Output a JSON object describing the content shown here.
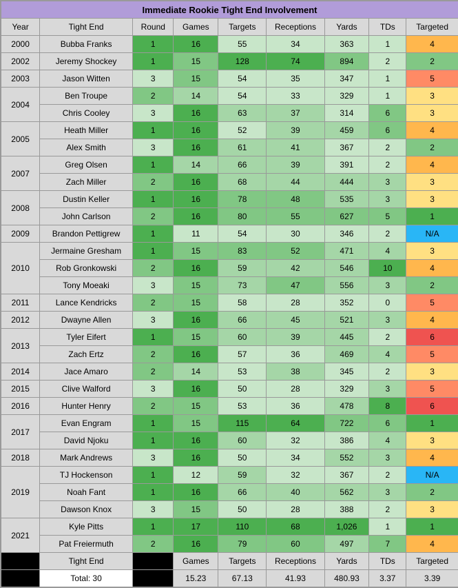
{
  "title": "Immediate Rookie Tight End Involvement",
  "headers": [
    "Year",
    "Tight End",
    "Round",
    "Games",
    "Targets",
    "Receptions",
    "Yards",
    "TDs",
    "Targeted"
  ],
  "footer": {
    "te_label": "Tight End",
    "stat_labels": [
      "Games",
      "Targets",
      "Receptions",
      "Yards",
      "TDs",
      "Targeted"
    ],
    "total_label": "Total: 30",
    "averages": [
      "15.23",
      "67.13",
      "41.93",
      "480.93",
      "3.37",
      "3.39"
    ]
  },
  "colors": {
    "green_dark": "#4caf50",
    "green_mid": "#81c784",
    "green_lite": "#a5d6a7",
    "green_vlite": "#c8e6c9",
    "yellow": "#ffe082",
    "orange": "#ffb74d",
    "orange_red": "#ff8a65",
    "red": "#ef5350",
    "blue": "#29b6f6"
  },
  "rows": [
    {
      "year": "2000",
      "span": 1,
      "te": "Bubba Franks",
      "round": "1",
      "round_c": "green_dark",
      "games": "16",
      "games_c": "green_dark",
      "targets": "55",
      "targets_c": "green_vlite",
      "receptions": "34",
      "receptions_c": "green_vlite",
      "yards": "363",
      "yards_c": "green_vlite",
      "tds": "1",
      "tds_c": "green_vlite",
      "targeted": "4",
      "targeted_c": "orange"
    },
    {
      "year": "2002",
      "span": 1,
      "te": "Jeremy Shockey",
      "round": "1",
      "round_c": "green_dark",
      "games": "15",
      "games_c": "green_mid",
      "targets": "128",
      "targets_c": "green_dark",
      "receptions": "74",
      "receptions_c": "green_dark",
      "yards": "894",
      "yards_c": "green_mid",
      "tds": "2",
      "tds_c": "green_vlite",
      "targeted": "2",
      "targeted_c": "green_mid"
    },
    {
      "year": "2003",
      "span": 1,
      "te": "Jason Witten",
      "round": "3",
      "round_c": "green_vlite",
      "games": "15",
      "games_c": "green_mid",
      "targets": "54",
      "targets_c": "green_vlite",
      "receptions": "35",
      "receptions_c": "green_vlite",
      "yards": "347",
      "yards_c": "green_vlite",
      "tds": "1",
      "tds_c": "green_vlite",
      "targeted": "5",
      "targeted_c": "orange_red"
    },
    {
      "year": "2004",
      "span": 2,
      "te": "Ben Troupe",
      "round": "2",
      "round_c": "green_mid",
      "games": "14",
      "games_c": "green_lite",
      "targets": "54",
      "targets_c": "green_vlite",
      "receptions": "33",
      "receptions_c": "green_vlite",
      "yards": "329",
      "yards_c": "green_vlite",
      "tds": "1",
      "tds_c": "green_vlite",
      "targeted": "3",
      "targeted_c": "yellow"
    },
    {
      "te": "Chris Cooley",
      "round": "3",
      "round_c": "green_vlite",
      "games": "16",
      "games_c": "green_dark",
      "targets": "63",
      "targets_c": "green_lite",
      "receptions": "37",
      "receptions_c": "green_lite",
      "yards": "314",
      "yards_c": "green_vlite",
      "tds": "6",
      "tds_c": "green_mid",
      "targeted": "3",
      "targeted_c": "yellow"
    },
    {
      "year": "2005",
      "span": 2,
      "te": "Heath Miller",
      "round": "1",
      "round_c": "green_dark",
      "games": "16",
      "games_c": "green_dark",
      "targets": "52",
      "targets_c": "green_vlite",
      "receptions": "39",
      "receptions_c": "green_lite",
      "yards": "459",
      "yards_c": "green_lite",
      "tds": "6",
      "tds_c": "green_mid",
      "targeted": "4",
      "targeted_c": "orange"
    },
    {
      "te": "Alex Smith",
      "round": "3",
      "round_c": "green_vlite",
      "games": "16",
      "games_c": "green_dark",
      "targets": "61",
      "targets_c": "green_lite",
      "receptions": "41",
      "receptions_c": "green_lite",
      "yards": "367",
      "yards_c": "green_vlite",
      "tds": "2",
      "tds_c": "green_vlite",
      "targeted": "2",
      "targeted_c": "green_mid"
    },
    {
      "year": "2007",
      "span": 2,
      "te": "Greg Olsen",
      "round": "1",
      "round_c": "green_dark",
      "games": "14",
      "games_c": "green_lite",
      "targets": "66",
      "targets_c": "green_lite",
      "receptions": "39",
      "receptions_c": "green_lite",
      "yards": "391",
      "yards_c": "green_vlite",
      "tds": "2",
      "tds_c": "green_vlite",
      "targeted": "4",
      "targeted_c": "orange"
    },
    {
      "te": "Zach Miller",
      "round": "2",
      "round_c": "green_mid",
      "games": "16",
      "games_c": "green_dark",
      "targets": "68",
      "targets_c": "green_lite",
      "receptions": "44",
      "receptions_c": "green_lite",
      "yards": "444",
      "yards_c": "green_lite",
      "tds": "3",
      "tds_c": "green_lite",
      "targeted": "3",
      "targeted_c": "yellow"
    },
    {
      "year": "2008",
      "span": 2,
      "te": "Dustin Keller",
      "round": "1",
      "round_c": "green_dark",
      "games": "16",
      "games_c": "green_dark",
      "targets": "78",
      "targets_c": "green_mid",
      "receptions": "48",
      "receptions_c": "green_mid",
      "yards": "535",
      "yards_c": "green_lite",
      "tds": "3",
      "tds_c": "green_lite",
      "targeted": "3",
      "targeted_c": "yellow"
    },
    {
      "te": "John Carlson",
      "round": "2",
      "round_c": "green_mid",
      "games": "16",
      "games_c": "green_dark",
      "targets": "80",
      "targets_c": "green_mid",
      "receptions": "55",
      "receptions_c": "green_mid",
      "yards": "627",
      "yards_c": "green_mid",
      "tds": "5",
      "tds_c": "green_mid",
      "targeted": "1",
      "targeted_c": "green_dark"
    },
    {
      "year": "2009",
      "span": 1,
      "te": "Brandon Pettigrew",
      "round": "1",
      "round_c": "green_dark",
      "games": "11",
      "games_c": "green_vlite",
      "targets": "54",
      "targets_c": "green_vlite",
      "receptions": "30",
      "receptions_c": "green_vlite",
      "yards": "346",
      "yards_c": "green_vlite",
      "tds": "2",
      "tds_c": "green_vlite",
      "targeted": "N/A",
      "targeted_c": "blue"
    },
    {
      "year": "2010",
      "span": 3,
      "te": "Jermaine Gresham",
      "round": "1",
      "round_c": "green_dark",
      "games": "15",
      "games_c": "green_mid",
      "targets": "83",
      "targets_c": "green_mid",
      "receptions": "52",
      "receptions_c": "green_mid",
      "yards": "471",
      "yards_c": "green_lite",
      "tds": "4",
      "tds_c": "green_lite",
      "targeted": "3",
      "targeted_c": "yellow"
    },
    {
      "te": "Rob Gronkowski",
      "round": "2",
      "round_c": "green_mid",
      "games": "16",
      "games_c": "green_dark",
      "targets": "59",
      "targets_c": "green_lite",
      "receptions": "42",
      "receptions_c": "green_lite",
      "yards": "546",
      "yards_c": "green_lite",
      "tds": "10",
      "tds_c": "green_dark",
      "targeted": "4",
      "targeted_c": "orange"
    },
    {
      "te": "Tony Moeaki",
      "round": "3",
      "round_c": "green_vlite",
      "games": "15",
      "games_c": "green_mid",
      "targets": "73",
      "targets_c": "green_lite",
      "receptions": "47",
      "receptions_c": "green_mid",
      "yards": "556",
      "yards_c": "green_lite",
      "tds": "3",
      "tds_c": "green_lite",
      "targeted": "2",
      "targeted_c": "green_mid"
    },
    {
      "year": "2011",
      "span": 1,
      "te": "Lance Kendricks",
      "round": "2",
      "round_c": "green_mid",
      "games": "15",
      "games_c": "green_mid",
      "targets": "58",
      "targets_c": "green_vlite",
      "receptions": "28",
      "receptions_c": "green_vlite",
      "yards": "352",
      "yards_c": "green_vlite",
      "tds": "0",
      "tds_c": "green_vlite",
      "targeted": "5",
      "targeted_c": "orange_red"
    },
    {
      "year": "2012",
      "span": 1,
      "te": "Dwayne Allen",
      "round": "3",
      "round_c": "green_vlite",
      "games": "16",
      "games_c": "green_dark",
      "targets": "66",
      "targets_c": "green_lite",
      "receptions": "45",
      "receptions_c": "green_lite",
      "yards": "521",
      "yards_c": "green_lite",
      "tds": "3",
      "tds_c": "green_lite",
      "targeted": "4",
      "targeted_c": "orange"
    },
    {
      "year": "2013",
      "span": 2,
      "te": "Tyler Eifert",
      "round": "1",
      "round_c": "green_dark",
      "games": "15",
      "games_c": "green_mid",
      "targets": "60",
      "targets_c": "green_lite",
      "receptions": "39",
      "receptions_c": "green_lite",
      "yards": "445",
      "yards_c": "green_lite",
      "tds": "2",
      "tds_c": "green_vlite",
      "targeted": "6",
      "targeted_c": "red"
    },
    {
      "te": "Zach Ertz",
      "round": "2",
      "round_c": "green_mid",
      "games": "16",
      "games_c": "green_dark",
      "targets": "57",
      "targets_c": "green_vlite",
      "receptions": "36",
      "receptions_c": "green_vlite",
      "yards": "469",
      "yards_c": "green_lite",
      "tds": "4",
      "tds_c": "green_lite",
      "targeted": "5",
      "targeted_c": "orange_red"
    },
    {
      "year": "2014",
      "span": 1,
      "te": "Jace Amaro",
      "round": "2",
      "round_c": "green_mid",
      "games": "14",
      "games_c": "green_lite",
      "targets": "53",
      "targets_c": "green_vlite",
      "receptions": "38",
      "receptions_c": "green_lite",
      "yards": "345",
      "yards_c": "green_vlite",
      "tds": "2",
      "tds_c": "green_vlite",
      "targeted": "3",
      "targeted_c": "yellow"
    },
    {
      "year": "2015",
      "span": 1,
      "te": "Clive Walford",
      "round": "3",
      "round_c": "green_vlite",
      "games": "16",
      "games_c": "green_dark",
      "targets": "50",
      "targets_c": "green_vlite",
      "receptions": "28",
      "receptions_c": "green_vlite",
      "yards": "329",
      "yards_c": "green_vlite",
      "tds": "3",
      "tds_c": "green_lite",
      "targeted": "5",
      "targeted_c": "orange_red"
    },
    {
      "year": "2016",
      "span": 1,
      "te": "Hunter Henry",
      "round": "2",
      "round_c": "green_mid",
      "games": "15",
      "games_c": "green_mid",
      "targets": "53",
      "targets_c": "green_vlite",
      "receptions": "36",
      "receptions_c": "green_vlite",
      "yards": "478",
      "yards_c": "green_lite",
      "tds": "8",
      "tds_c": "green_dark",
      "targeted": "6",
      "targeted_c": "red"
    },
    {
      "year": "2017",
      "span": 2,
      "te": "Evan Engram",
      "round": "1",
      "round_c": "green_dark",
      "games": "15",
      "games_c": "green_mid",
      "targets": "115",
      "targets_c": "green_dark",
      "receptions": "64",
      "receptions_c": "green_dark",
      "yards": "722",
      "yards_c": "green_mid",
      "tds": "6",
      "tds_c": "green_mid",
      "targeted": "1",
      "targeted_c": "green_dark"
    },
    {
      "te": "David Njoku",
      "round": "1",
      "round_c": "green_dark",
      "games": "16",
      "games_c": "green_dark",
      "targets": "60",
      "targets_c": "green_lite",
      "receptions": "32",
      "receptions_c": "green_vlite",
      "yards": "386",
      "yards_c": "green_vlite",
      "tds": "4",
      "tds_c": "green_lite",
      "targeted": "3",
      "targeted_c": "yellow"
    },
    {
      "year": "2018",
      "span": 1,
      "te": "Mark Andrews",
      "round": "3",
      "round_c": "green_vlite",
      "games": "16",
      "games_c": "green_dark",
      "targets": "50",
      "targets_c": "green_vlite",
      "receptions": "34",
      "receptions_c": "green_vlite",
      "yards": "552",
      "yards_c": "green_lite",
      "tds": "3",
      "tds_c": "green_lite",
      "targeted": "4",
      "targeted_c": "orange"
    },
    {
      "year": "2019",
      "span": 3,
      "te": "TJ Hockenson",
      "round": "1",
      "round_c": "green_dark",
      "games": "12",
      "games_c": "green_vlite",
      "targets": "59",
      "targets_c": "green_lite",
      "receptions": "32",
      "receptions_c": "green_vlite",
      "yards": "367",
      "yards_c": "green_vlite",
      "tds": "2",
      "tds_c": "green_vlite",
      "targeted": "N/A",
      "targeted_c": "blue"
    },
    {
      "te": "Noah Fant",
      "round": "1",
      "round_c": "green_dark",
      "games": "16",
      "games_c": "green_dark",
      "targets": "66",
      "targets_c": "green_lite",
      "receptions": "40",
      "receptions_c": "green_lite",
      "yards": "562",
      "yards_c": "green_lite",
      "tds": "3",
      "tds_c": "green_lite",
      "targeted": "2",
      "targeted_c": "green_mid"
    },
    {
      "te": "Dawson Knox",
      "round": "3",
      "round_c": "green_vlite",
      "games": "15",
      "games_c": "green_mid",
      "targets": "50",
      "targets_c": "green_vlite",
      "receptions": "28",
      "receptions_c": "green_vlite",
      "yards": "388",
      "yards_c": "green_vlite",
      "tds": "2",
      "tds_c": "green_vlite",
      "targeted": "3",
      "targeted_c": "yellow"
    },
    {
      "year": "2021",
      "span": 2,
      "te": "Kyle Pitts",
      "round": "1",
      "round_c": "green_dark",
      "games": "17",
      "games_c": "green_dark",
      "targets": "110",
      "targets_c": "green_dark",
      "receptions": "68",
      "receptions_c": "green_dark",
      "yards": "1,026",
      "yards_c": "green_dark",
      "tds": "1",
      "tds_c": "green_vlite",
      "targeted": "1",
      "targeted_c": "green_dark"
    },
    {
      "te": "Pat Freiermuth",
      "round": "2",
      "round_c": "green_mid",
      "games": "16",
      "games_c": "green_dark",
      "targets": "79",
      "targets_c": "green_mid",
      "receptions": "60",
      "receptions_c": "green_mid",
      "yards": "497",
      "yards_c": "green_lite",
      "tds": "7",
      "tds_c": "green_mid",
      "targeted": "4",
      "targeted_c": "orange"
    }
  ]
}
